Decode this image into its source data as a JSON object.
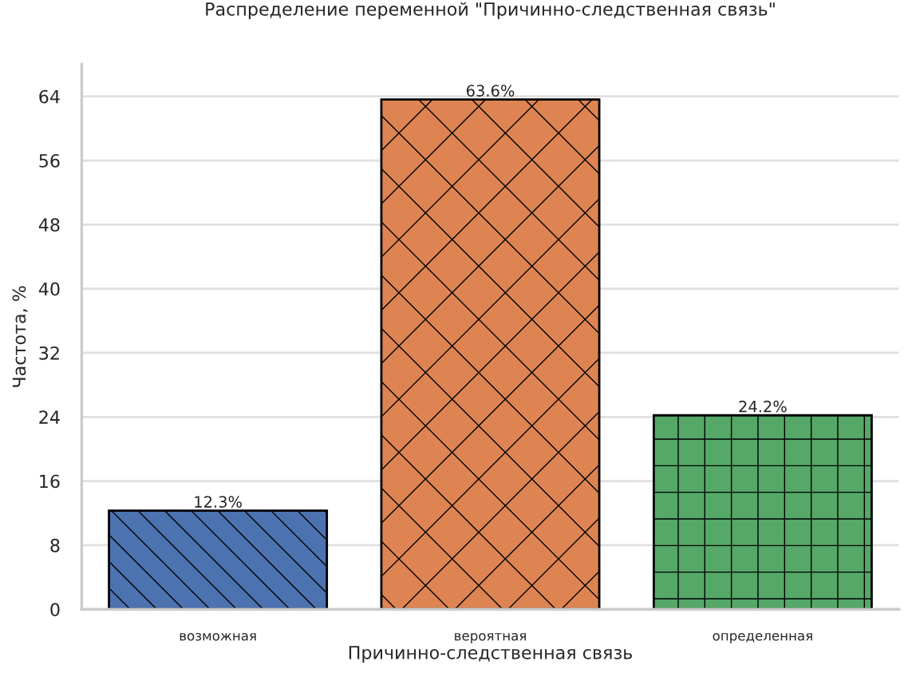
{
  "chart_data": {
    "type": "bar",
    "title": "Распределение переменной \"Причинно-следственная связь\"",
    "xlabel": "Причинно-следственная связь",
    "ylabel": "Частота, %",
    "categories": [
      "возможная",
      "вероятная",
      "определенная"
    ],
    "values": [
      12.3,
      63.6,
      24.2
    ],
    "colors": [
      "#4c72b0",
      "#dd8452",
      "#55a868"
    ],
    "value_labels": [
      "12.3%",
      "63.6%",
      "24.2%"
    ],
    "ylim": [
      0,
      68
    ],
    "yticks": [
      0,
      8,
      16,
      24,
      32,
      40,
      48,
      56,
      64
    ],
    "grid": "y",
    "legend": false
  }
}
